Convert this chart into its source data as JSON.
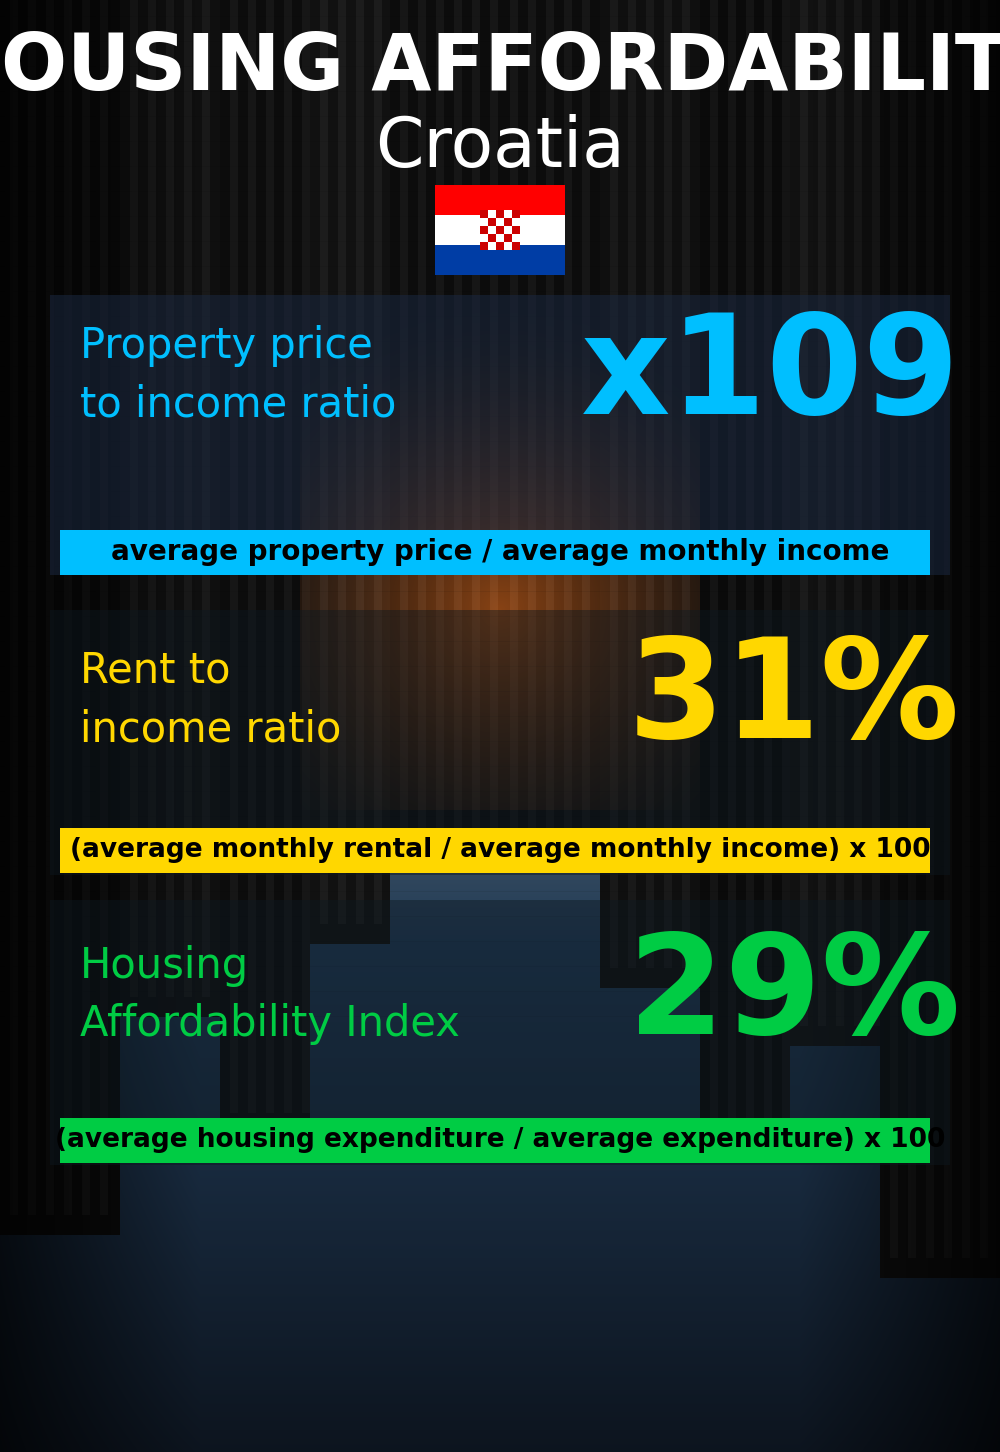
{
  "title_line1": "HOUSING AFFORDABILITY",
  "title_line2": "Croatia",
  "section1_label": "Property price\nto income ratio",
  "section1_value": "x109",
  "section1_label_color": "#00bfff",
  "section1_value_color": "#00bfff",
  "section1_formula": "average property price / average monthly income",
  "section1_formula_bg": "#00bfff",
  "section2_label": "Rent to\nincome ratio",
  "section2_value": "31%",
  "section2_label_color": "#FFD700",
  "section2_value_color": "#FFD700",
  "section2_formula": "(average monthly rental / average monthly income) x 100",
  "section2_formula_bg": "#FFD700",
  "section3_label": "Housing\nAffordability Index",
  "section3_value": "29%",
  "section3_label_color": "#00cc44",
  "section3_value_color": "#00cc44",
  "section3_formula": "(average housing expenditure / average expenditure) x 100",
  "section3_formula_bg": "#00cc44",
  "bg_color": "#0a1520",
  "title1_color": "#ffffff",
  "title2_color": "#ffffff"
}
